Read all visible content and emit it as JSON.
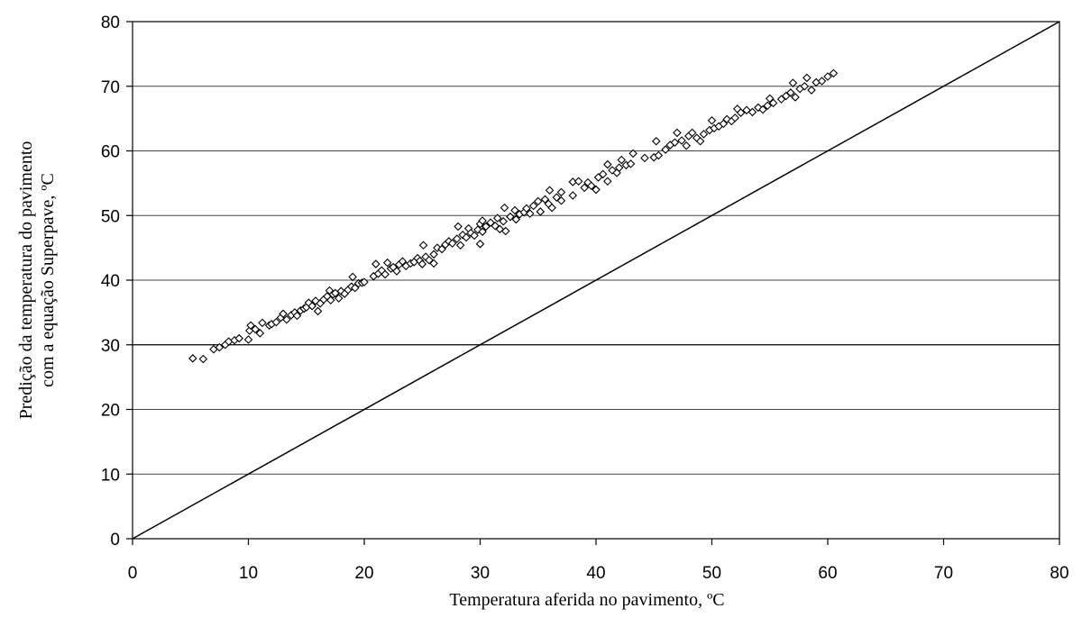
{
  "chart_data": {
    "type": "scatter",
    "xlabel": "Temperatura aferida no pavimento, ºC",
    "ylabel_lines": [
      "Predição da temperatura do pavimento",
      "com a equação Superpave, ºC"
    ],
    "xlim": [
      0,
      80
    ],
    "ylim": [
      0,
      80
    ],
    "x_ticks": [
      0,
      10,
      20,
      30,
      40,
      50,
      60,
      70,
      80
    ],
    "y_ticks": [
      0,
      10,
      20,
      30,
      40,
      50,
      60,
      70,
      80
    ],
    "y_gridlines": [
      10,
      20,
      30,
      40,
      50,
      60,
      70
    ],
    "marker": "open-diamond",
    "reference_line": {
      "from": [
        0,
        0
      ],
      "to": [
        80,
        80
      ]
    },
    "points": [
      [
        5.2,
        27.9
      ],
      [
        6.1,
        27.8
      ],
      [
        7.0,
        29.3
      ],
      [
        7.5,
        29.6
      ],
      [
        8.0,
        30.0
      ],
      [
        8.3,
        30.5
      ],
      [
        8.8,
        30.7
      ],
      [
        9.2,
        31.0
      ],
      [
        10.0,
        30.8
      ],
      [
        10.1,
        32.2
      ],
      [
        10.2,
        33.0
      ],
      [
        10.6,
        32.4
      ],
      [
        11.0,
        31.8
      ],
      [
        11.2,
        33.4
      ],
      [
        11.8,
        33.0
      ],
      [
        12.0,
        33.2
      ],
      [
        12.4,
        33.5
      ],
      [
        12.8,
        34.2
      ],
      [
        13.0,
        34.8
      ],
      [
        13.3,
        33.9
      ],
      [
        13.7,
        34.6
      ],
      [
        14.0,
        35.0
      ],
      [
        14.2,
        34.5
      ],
      [
        14.5,
        35.3
      ],
      [
        14.8,
        35.6
      ],
      [
        15.0,
        35.8
      ],
      [
        15.2,
        36.5
      ],
      [
        15.5,
        36.0
      ],
      [
        15.8,
        36.8
      ],
      [
        16.0,
        35.2
      ],
      [
        16.2,
        36.4
      ],
      [
        16.5,
        37.0
      ],
      [
        16.8,
        37.5
      ],
      [
        17.0,
        38.4
      ],
      [
        17.1,
        36.9
      ],
      [
        17.3,
        37.8
      ],
      [
        17.5,
        38.0
      ],
      [
        17.8,
        37.2
      ],
      [
        18.0,
        38.3
      ],
      [
        18.3,
        37.9
      ],
      [
        18.6,
        38.5
      ],
      [
        18.9,
        39.0
      ],
      [
        19.0,
        40.5
      ],
      [
        19.2,
        38.8
      ],
      [
        19.5,
        39.5
      ],
      [
        19.8,
        39.6
      ],
      [
        20.0,
        39.7
      ],
      [
        20.8,
        40.6
      ],
      [
        21.0,
        42.5
      ],
      [
        21.2,
        41.0
      ],
      [
        21.5,
        41.5
      ],
      [
        21.8,
        40.9
      ],
      [
        22.0,
        42.7
      ],
      [
        22.3,
        41.8
      ],
      [
        22.5,
        42.0
      ],
      [
        22.8,
        41.4
      ],
      [
        23.0,
        42.4
      ],
      [
        23.3,
        42.9
      ],
      [
        23.6,
        42.2
      ],
      [
        24.0,
        42.6
      ],
      [
        24.3,
        42.8
      ],
      [
        24.6,
        43.4
      ],
      [
        24.8,
        43.0
      ],
      [
        25.0,
        42.5
      ],
      [
        25.1,
        45.4
      ],
      [
        25.3,
        43.6
      ],
      [
        25.6,
        43.1
      ],
      [
        26.0,
        44.0
      ],
      [
        26.0,
        42.6
      ],
      [
        26.3,
        45.0
      ],
      [
        26.7,
        44.8
      ],
      [
        27.0,
        45.5
      ],
      [
        27.3,
        46.0
      ],
      [
        27.6,
        45.7
      ],
      [
        28.0,
        46.4
      ],
      [
        28.1,
        48.3
      ],
      [
        28.3,
        45.4
      ],
      [
        28.5,
        47.0
      ],
      [
        28.8,
        46.6
      ],
      [
        29.0,
        48.0
      ],
      [
        29.2,
        47.3
      ],
      [
        29.5,
        46.9
      ],
      [
        29.8,
        47.8
      ],
      [
        30.0,
        48.7
      ],
      [
        30.0,
        45.6
      ],
      [
        30.2,
        47.5
      ],
      [
        30.2,
        49.2
      ],
      [
        30.5,
        48.3
      ],
      [
        30.9,
        48.9
      ],
      [
        31.3,
        48.4
      ],
      [
        31.5,
        49.6
      ],
      [
        31.7,
        47.9
      ],
      [
        32.0,
        49.1
      ],
      [
        32.1,
        51.2
      ],
      [
        32.2,
        47.6
      ],
      [
        32.6,
        49.8
      ],
      [
        33.0,
        50.8
      ],
      [
        33.1,
        49.4
      ],
      [
        33.4,
        50.2
      ],
      [
        33.8,
        50.5
      ],
      [
        34.0,
        51.1
      ],
      [
        34.3,
        50.3
      ],
      [
        34.6,
        51.5
      ],
      [
        35.0,
        52.2
      ],
      [
        35.2,
        50.6
      ],
      [
        35.6,
        52.5
      ],
      [
        35.9,
        51.8
      ],
      [
        36.0,
        53.9
      ],
      [
        36.2,
        51.2
      ],
      [
        36.6,
        52.8
      ],
      [
        37.0,
        53.6
      ],
      [
        37.0,
        52.3
      ],
      [
        38.0,
        53.1
      ],
      [
        38.0,
        55.2
      ],
      [
        38.5,
        55.3
      ],
      [
        39.0,
        54.3
      ],
      [
        39.3,
        55.1
      ],
      [
        39.6,
        54.6
      ],
      [
        40.0,
        54.0
      ],
      [
        40.2,
        55.9
      ],
      [
        40.6,
        56.4
      ],
      [
        41.0,
        57.9
      ],
      [
        41.0,
        55.3
      ],
      [
        41.4,
        57.0
      ],
      [
        41.8,
        56.6
      ],
      [
        42.0,
        57.4
      ],
      [
        42.2,
        58.6
      ],
      [
        42.6,
        57.8
      ],
      [
        43.0,
        58.0
      ],
      [
        43.2,
        59.6
      ],
      [
        44.2,
        58.9
      ],
      [
        45.0,
        59.0
      ],
      [
        45.2,
        61.5
      ],
      [
        45.4,
        59.3
      ],
      [
        46.0,
        60.2
      ],
      [
        46.4,
        60.9
      ],
      [
        46.8,
        61.3
      ],
      [
        47.0,
        62.8
      ],
      [
        47.4,
        61.6
      ],
      [
        47.8,
        60.8
      ],
      [
        48.0,
        62.3
      ],
      [
        48.3,
        62.8
      ],
      [
        48.7,
        62.0
      ],
      [
        49.0,
        61.5
      ],
      [
        49.3,
        62.6
      ],
      [
        49.8,
        63.2
      ],
      [
        50.0,
        64.7
      ],
      [
        50.2,
        63.5
      ],
      [
        50.6,
        63.8
      ],
      [
        51.0,
        64.2
      ],
      [
        51.3,
        64.9
      ],
      [
        51.7,
        64.6
      ],
      [
        52.0,
        65.1
      ],
      [
        52.2,
        66.5
      ],
      [
        52.5,
        65.9
      ],
      [
        53.0,
        66.3
      ],
      [
        53.5,
        66.0
      ],
      [
        54.0,
        66.7
      ],
      [
        54.4,
        66.4
      ],
      [
        54.8,
        67.0
      ],
      [
        55.0,
        68.1
      ],
      [
        55.3,
        67.4
      ],
      [
        56.0,
        68.0
      ],
      [
        56.4,
        68.5
      ],
      [
        56.8,
        69.0
      ],
      [
        57.0,
        70.5
      ],
      [
        57.2,
        68.3
      ],
      [
        57.6,
        69.6
      ],
      [
        58.0,
        70.0
      ],
      [
        58.2,
        71.3
      ],
      [
        58.6,
        69.4
      ],
      [
        59.0,
        70.6
      ],
      [
        59.5,
        70.8
      ],
      [
        60.0,
        71.5
      ],
      [
        60.5,
        72.0
      ]
    ]
  }
}
